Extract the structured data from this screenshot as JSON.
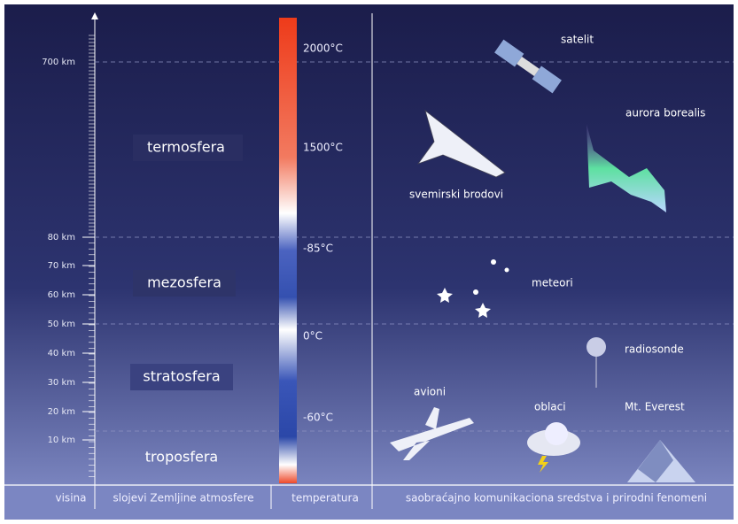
{
  "altitude_ticks": [
    "700 km",
    "80 km",
    "70 km",
    "60 km",
    "50 km",
    "40 km",
    "30 km",
    "20 km",
    "10 km"
  ],
  "layers": [
    "termosfera",
    "mezosfera",
    "stratosfera",
    "troposfera"
  ],
  "temperatures": [
    "2000°C",
    "1500°C",
    "-85°C",
    "0°C",
    "-60°C"
  ],
  "phenomena": {
    "satellite": "satelit",
    "aurora": "aurora borealis",
    "spacecraft": "svemirski brodovi",
    "meteors": "meteori",
    "radiosonde": "radiosonde",
    "planes": "avioni",
    "clouds": "oblaci",
    "everest": "Mt. Everest"
  },
  "columns": [
    "visina",
    "slojevi Zemljine atmosfere",
    "temperatura",
    "saobraćajno komunikaciona sredstva i prirodni fenomeni"
  ]
}
